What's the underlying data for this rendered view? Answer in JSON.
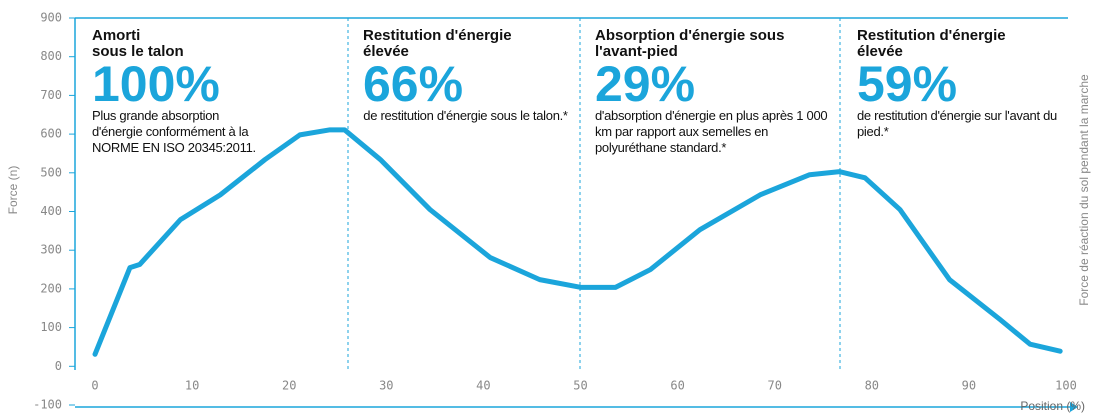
{
  "chart_data": {
    "type": "line",
    "ylabel": "Force (n)",
    "xlabel": "Position (%)",
    "y2label": "Force de réaction du sol pendant la marche",
    "xlim": [
      0,
      100
    ],
    "xticks": [
      0,
      10,
      20,
      30,
      40,
      50,
      60,
      70,
      80,
      90,
      100
    ],
    "ylim": [
      -100,
      900
    ],
    "yticks": [
      -100,
      0,
      100,
      200,
      300,
      400,
      500,
      600,
      700,
      800,
      900
    ],
    "x": [
      0,
      3.6,
      4.6,
      8.8,
      12.9,
      17.5,
      21.1,
      24.2,
      25.7,
      29.4,
      34.5,
      40.7,
      45.8,
      50,
      53.6,
      57.2,
      62.3,
      68.5,
      73.6,
      76.7,
      79.3,
      82.9,
      88,
      93.2,
      96.3,
      99.4
    ],
    "series": [
      {
        "color": "#1ba5db",
        "values": [
          31,
          255,
          263,
          379,
          443,
          534,
          598,
          611,
          611,
          534,
          405,
          281,
          224,
          204,
          204,
          250,
          353,
          443,
          495,
          503,
          487,
          405,
          224,
          121,
          57,
          39
        ]
      }
    ],
    "annotations": [
      {
        "title": "Amorti\nsous le talon",
        "value_label": "100%",
        "text": "Plus grande absorption d'énergie conformément à la NORME EN ISO 20345:2011."
      },
      {
        "title": "Restitution d'énergie\nélevée",
        "value_label": "66%",
        "text": "de restitution d'énergie sous le talon.*"
      },
      {
        "title": "Absorption d'énergie sous\nl'avant-pied",
        "value_label": "29%",
        "text": "d'absorption d'énergie en plus après 1 000 km par rapport aux semelles en polyuréthane standard.*"
      },
      {
        "title": "Restitution d'énergie\nélevée",
        "value_label": "59%",
        "text": "de restitution d'énergie sur l'avant du pied.*"
      }
    ]
  }
}
